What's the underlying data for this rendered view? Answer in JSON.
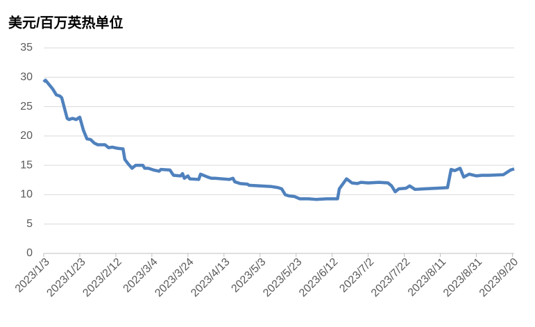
{
  "chart_data": {
    "type": "line",
    "title": "美元/百万英热单位",
    "x": [
      0,
      1,
      5,
      7,
      9,
      10,
      13,
      14,
      16,
      18,
      20,
      22,
      24,
      26,
      28,
      30,
      34,
      36,
      38,
      41,
      44,
      45,
      47,
      49,
      51,
      55,
      56,
      58,
      61,
      64,
      65,
      70,
      72,
      76,
      77,
      78,
      80,
      81,
      86,
      87,
      91,
      93,
      95,
      103,
      105,
      106,
      109,
      113,
      114,
      120,
      126,
      130,
      132,
      134,
      136,
      139,
      142,
      147,
      151,
      157,
      163,
      164,
      168,
      171,
      174,
      176,
      180,
      186,
      191,
      193,
      195,
      197,
      201,
      203,
      206,
      211,
      218,
      224,
      226,
      228,
      231,
      233,
      236,
      240,
      243,
      247,
      255,
      259,
      261
    ],
    "series": [
      {
        "name": null,
        "color": "#4f81bd",
        "values": [
          29.2,
          29.5,
          28,
          27,
          26.8,
          26.5,
          23,
          22.8,
          23,
          22.8,
          23.2,
          21,
          19.5,
          19.4,
          18.8,
          18.5,
          18.5,
          18,
          18.1,
          17.9,
          17.8,
          16,
          15.2,
          14.5,
          15,
          15,
          14.5,
          14.5,
          14.2,
          14,
          14.3,
          14.2,
          13.3,
          13.2,
          13.6,
          12.8,
          13.2,
          12.7,
          12.6,
          13.5,
          13,
          12.8,
          12.8,
          12.6,
          12.8,
          12.2,
          11.9,
          11.8,
          11.6,
          11.5,
          11.4,
          11.2,
          11,
          10,
          9.8,
          9.7,
          9.3,
          9.3,
          9.2,
          9.3,
          9.3,
          11,
          12.7,
          12,
          11.9,
          12.1,
          12,
          12.1,
          12,
          11.5,
          10.5,
          11,
          11.1,
          11.5,
          10.9,
          11,
          11.1,
          11.2,
          14.3,
          14.1,
          14.5,
          13,
          13.5,
          13.2,
          13.3,
          13.3,
          13.4,
          14.2,
          14.4
        ]
      }
    ],
    "xlim": [
      0,
      261
    ],
    "xticks": [
      {
        "value": 0,
        "label": "2023/1/3"
      },
      {
        "value": 20,
        "label": "2023/1/23"
      },
      {
        "value": 40,
        "label": "2023/2/12"
      },
      {
        "value": 60,
        "label": "2023/3/4"
      },
      {
        "value": 80,
        "label": "2023/3/24"
      },
      {
        "value": 100,
        "label": "2023/4/13"
      },
      {
        "value": 120,
        "label": "2023/5/3"
      },
      {
        "value": 140,
        "label": "2023/5/23"
      },
      {
        "value": 160,
        "label": "2023/6/12"
      },
      {
        "value": 180,
        "label": "2023/7/2"
      },
      {
        "value": 200,
        "label": "2023/7/22"
      },
      {
        "value": 220,
        "label": "2023/8/11"
      },
      {
        "value": 240,
        "label": "2023/8/31"
      },
      {
        "value": 260,
        "label": "2023/9/20"
      }
    ],
    "ylim": [
      0,
      35
    ],
    "yticks": [
      0,
      5,
      10,
      15,
      20,
      25,
      30,
      35
    ],
    "grid": true
  }
}
